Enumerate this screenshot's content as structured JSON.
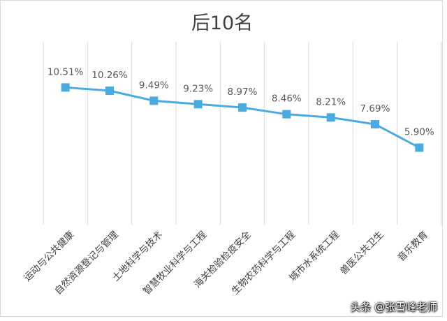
{
  "chart_data": {
    "type": "line",
    "title": "后10名",
    "categories": [
      "运动与公共健康",
      "自然资源登记与管理",
      "土地科学与技术",
      "智慧牧业科学与工程",
      "海关检验检疫安全",
      "生物农药科学与工程",
      "城市水系统工程",
      "兽医公共卫生",
      "音乐教育"
    ],
    "values": [
      10.51,
      10.26,
      9.49,
      9.23,
      8.97,
      8.46,
      8.21,
      7.69,
      5.9
    ],
    "data_labels": [
      "10.51%",
      "10.26%",
      "9.49%",
      "9.23%",
      "8.97%",
      "8.46%",
      "8.21%",
      "7.69%",
      "5.90%"
    ],
    "ylim": [
      0,
      14
    ],
    "grid": "vertical",
    "legend": "none",
    "colors": {
      "series": "#4aabe2",
      "grid": "#d9d9d9",
      "text": "#595959"
    }
  },
  "watermark": "头条 @张雪峰老师"
}
